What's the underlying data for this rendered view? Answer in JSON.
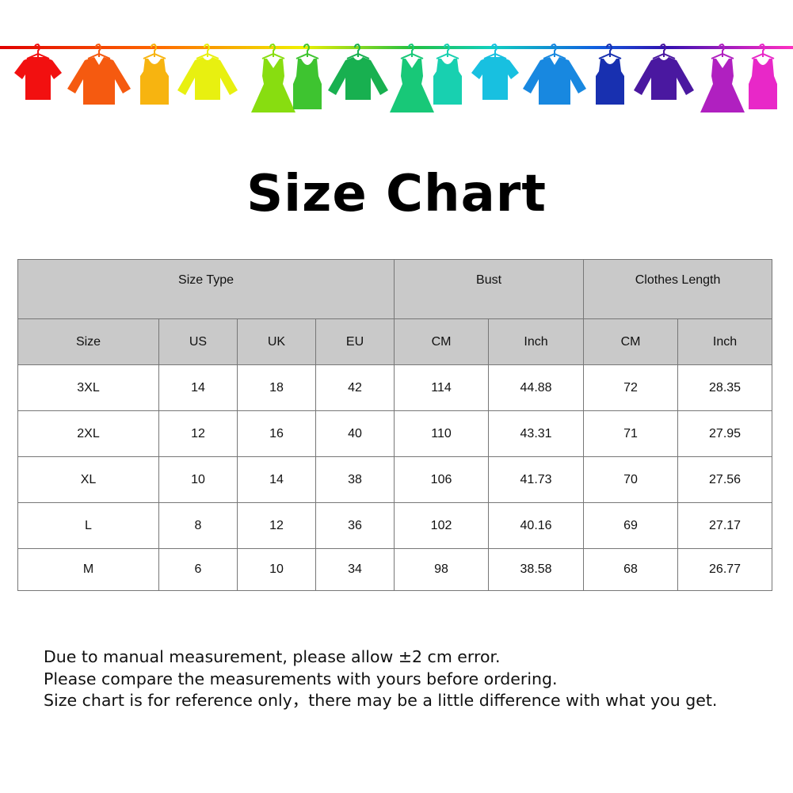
{
  "banner": {
    "clothes": [
      {
        "icon": "tshirt-icon",
        "color": "#f21010"
      },
      {
        "icon": "shirt-icon",
        "color": "#f55a10"
      },
      {
        "icon": "tank-top-icon",
        "color": "#f7b410"
      },
      {
        "icon": "sweater-icon",
        "color": "#e8f010"
      },
      {
        "icon": "dress-icon",
        "color": "#88dd10"
      },
      {
        "icon": "tank-dress-icon",
        "color": "#3ec430"
      },
      {
        "icon": "sweater-icon",
        "color": "#18b050"
      },
      {
        "icon": "dress-icon",
        "color": "#18c878"
      },
      {
        "icon": "tank-top-icon",
        "color": "#18d0b0"
      },
      {
        "icon": "tshirt-icon",
        "color": "#18c0e0"
      },
      {
        "icon": "shirt-icon",
        "color": "#1888e0"
      },
      {
        "icon": "tank-top-icon",
        "color": "#1830b0"
      },
      {
        "icon": "sweater-icon",
        "color": "#4a18a0"
      },
      {
        "icon": "dress-icon",
        "color": "#b020c0"
      },
      {
        "icon": "tank-dress-icon",
        "color": "#e828c8"
      }
    ]
  },
  "title": "Size Chart",
  "table": {
    "group_headers": [
      "Size Type",
      "Bust",
      "Clothes Length"
    ],
    "sub_headers": [
      "Size",
      "US",
      "UK",
      "EU",
      "CM",
      "Inch",
      "CM",
      "Inch"
    ],
    "rows": [
      [
        "3XL",
        "14",
        "18",
        "42",
        "114",
        "44.88",
        "72",
        "28.35"
      ],
      [
        "2XL",
        "12",
        "16",
        "40",
        "110",
        "43.31",
        "71",
        "27.95"
      ],
      [
        "XL",
        "10",
        "14",
        "38",
        "106",
        "41.73",
        "70",
        "27.56"
      ],
      [
        "L",
        "8",
        "12",
        "36",
        "102",
        "40.16",
        "69",
        "27.17"
      ],
      [
        "M",
        "6",
        "10",
        "34",
        "98",
        "38.58",
        "68",
        "26.77"
      ]
    ]
  },
  "notes": [
    "Due to manual measurement, please allow ±2 cm error.",
    "Please compare the measurements with yours before ordering.",
    "Size chart is for reference only，there may be a little difference with what you get."
  ]
}
